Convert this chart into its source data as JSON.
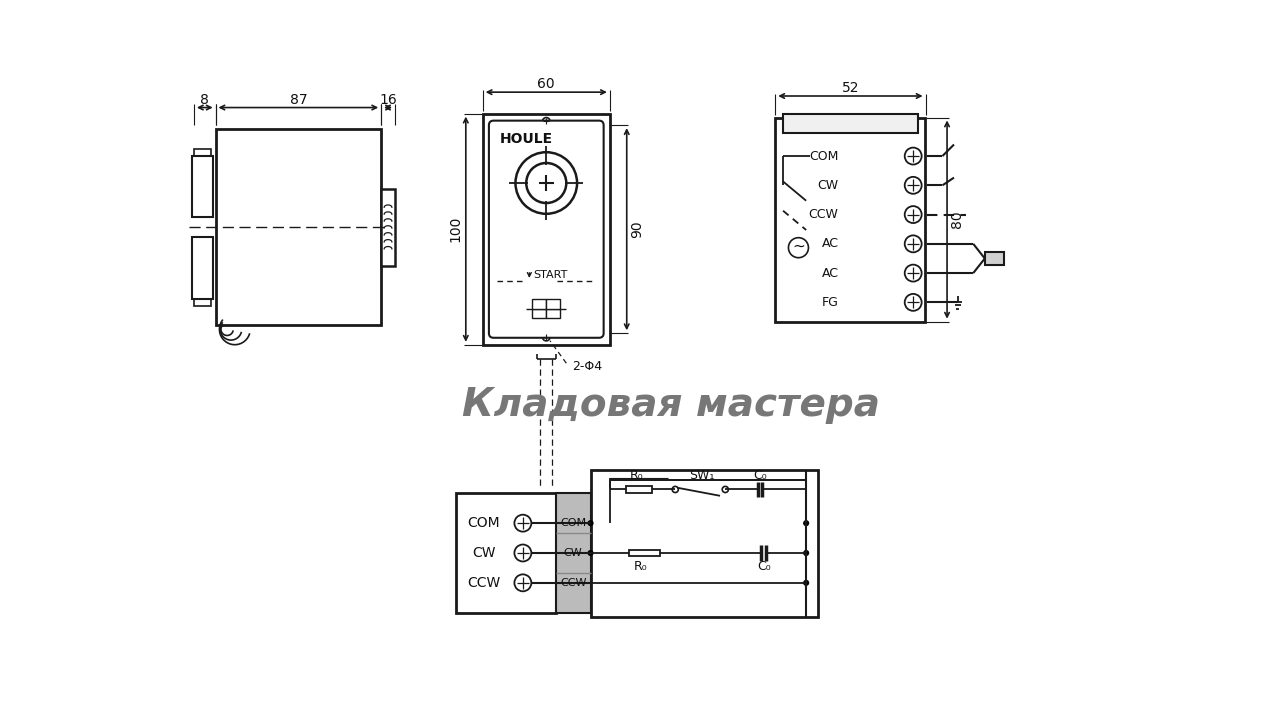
{
  "bg_color": "#ffffff",
  "line_color": "#1a1a1a",
  "text_color": "#111111",
  "watermark": "Кладовая мастера",
  "dim_8": "8",
  "dim_87": "87",
  "dim_16": "16",
  "dim_60": "60",
  "dim_100": "100",
  "dim_90": "90",
  "dim_52": "52",
  "dim_80": "80",
  "label_com": "COM",
  "label_cw": "CW",
  "label_ccw": "CCW",
  "label_ac1": "AC",
  "label_ac2": "AC",
  "label_fg": "FG",
  "label_start": "START",
  "label_houle": "HOULE",
  "label_2phi4": "2-Φ4",
  "label_r0": "R₀",
  "label_c0": "C₀",
  "label_sw1": "SW₁",
  "gray_strip": "#bbbbbb"
}
